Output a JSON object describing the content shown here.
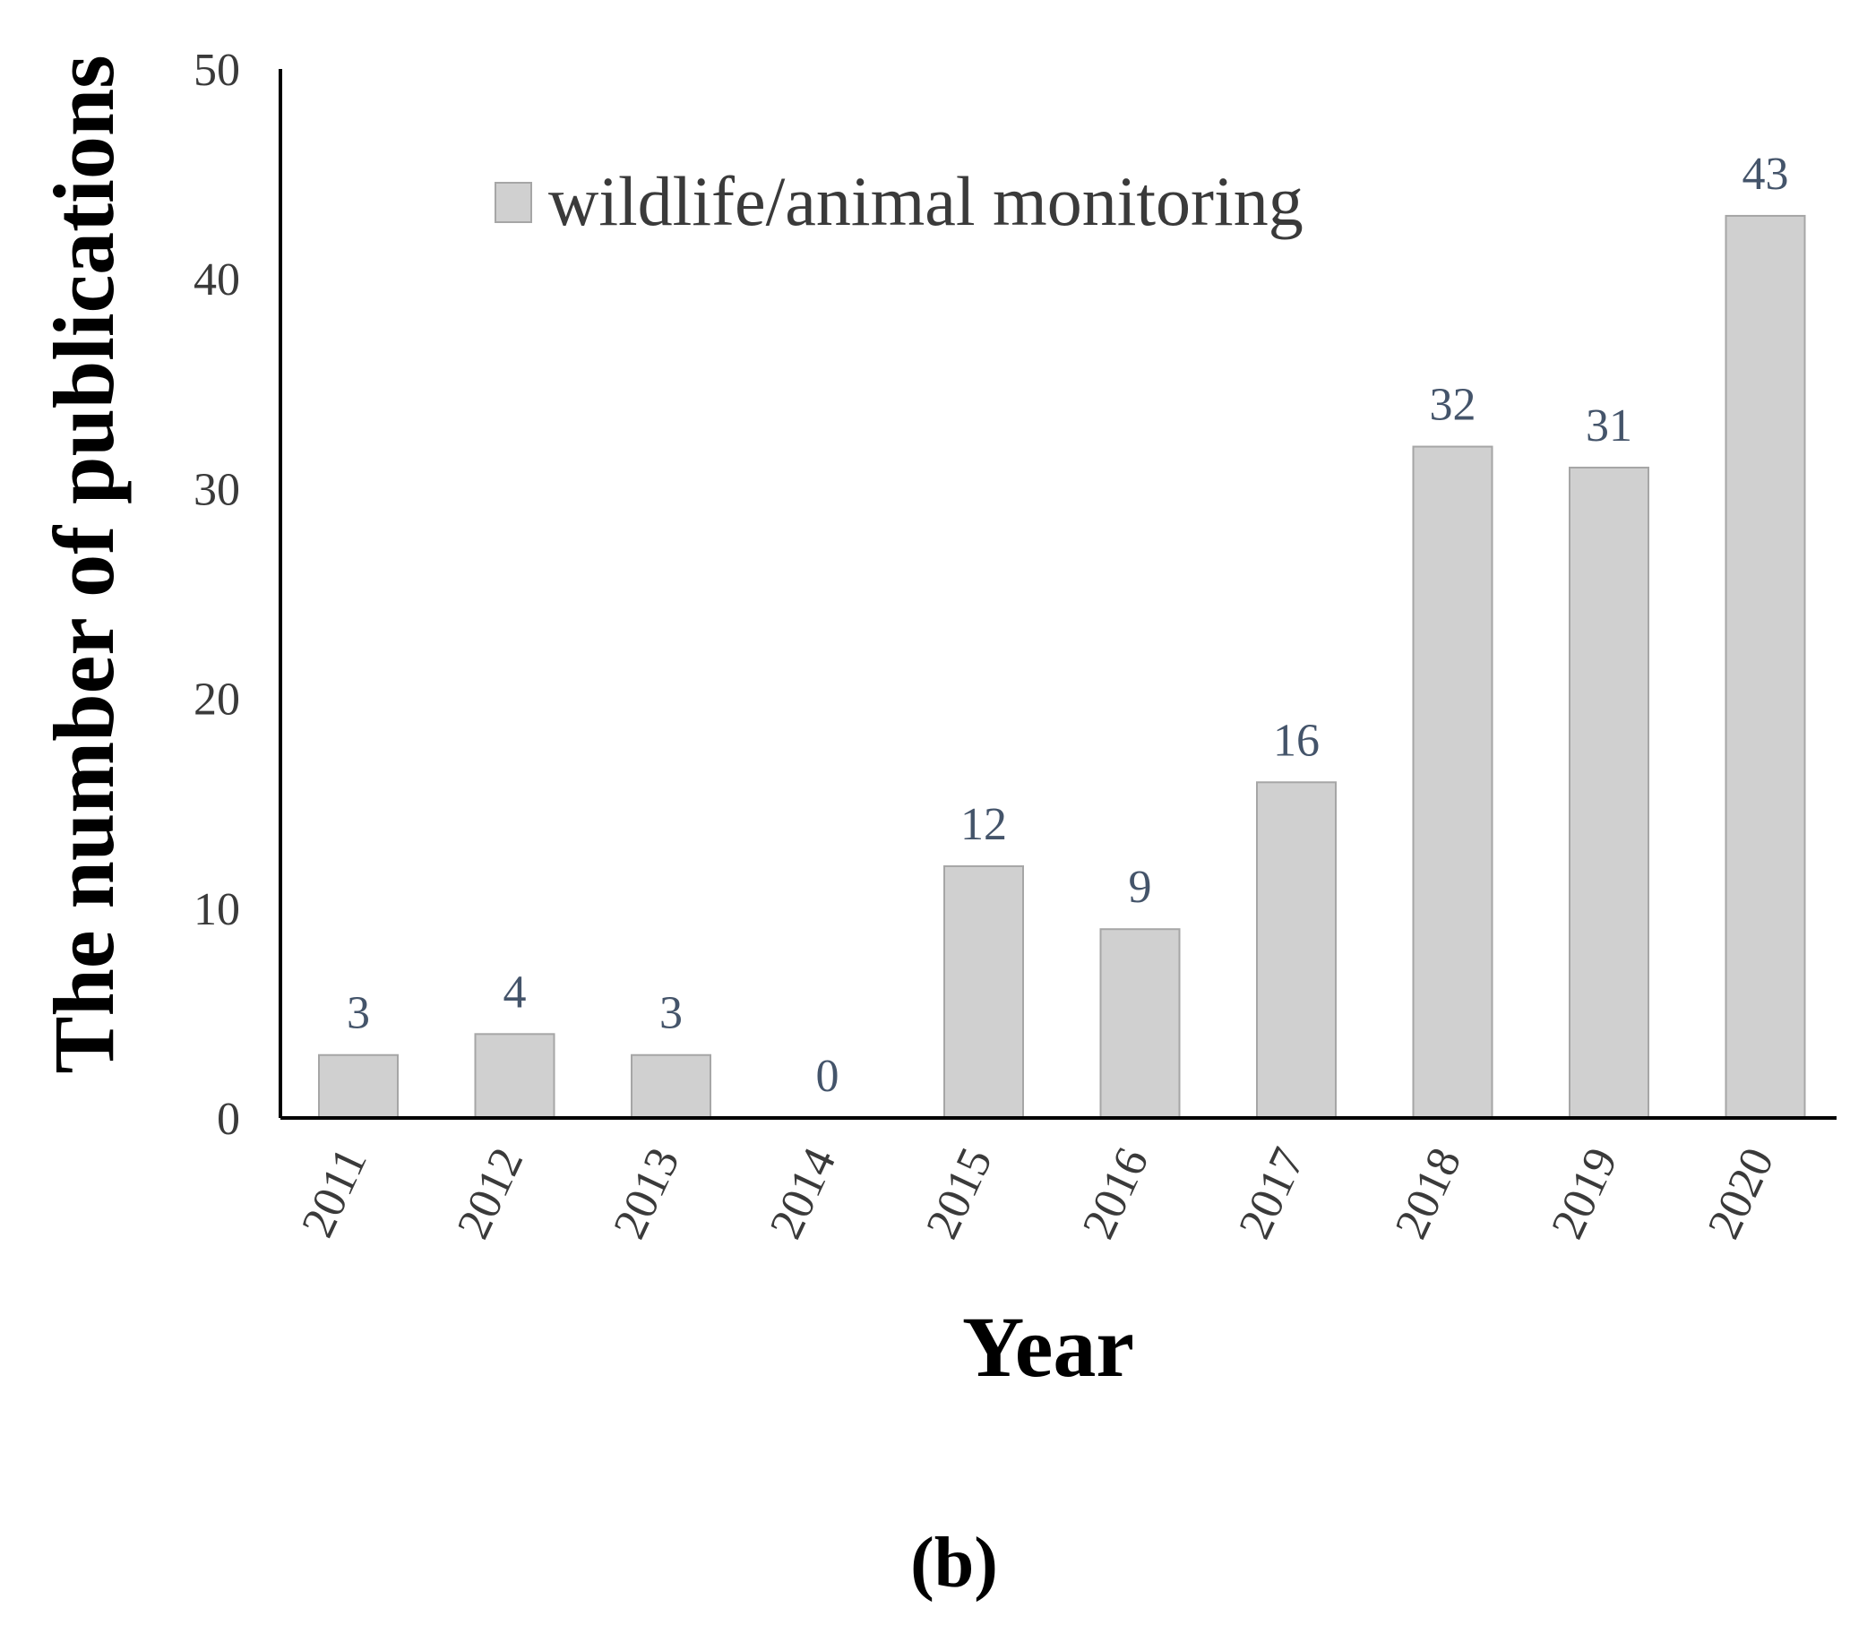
{
  "chart_data": {
    "type": "bar",
    "categories": [
      "2011",
      "2012",
      "2013",
      "2014",
      "2015",
      "2016",
      "2017",
      "2018",
      "2019",
      "2020"
    ],
    "series": [
      {
        "name": "wildlife/animal monitoring",
        "values": [
          3,
          4,
          3,
          0,
          12,
          9,
          16,
          32,
          31,
          43
        ]
      }
    ],
    "data_labels": [
      "3",
      "4",
      "3",
      "0",
      "12",
      "9",
      "16",
      "32",
      "31",
      "43"
    ],
    "ylim": [
      0,
      50
    ],
    "yticks": [
      "0",
      "10",
      "20",
      "30",
      "40",
      "50"
    ],
    "xlabel": "Year",
    "ylabel": "The number of publications",
    "legend_position": "top-center",
    "grid": false,
    "bar_color": "#d0d0d0",
    "bar_edge_color": "#a6a6a6",
    "label_color": "#44546a"
  },
  "panel_label": "(b)"
}
